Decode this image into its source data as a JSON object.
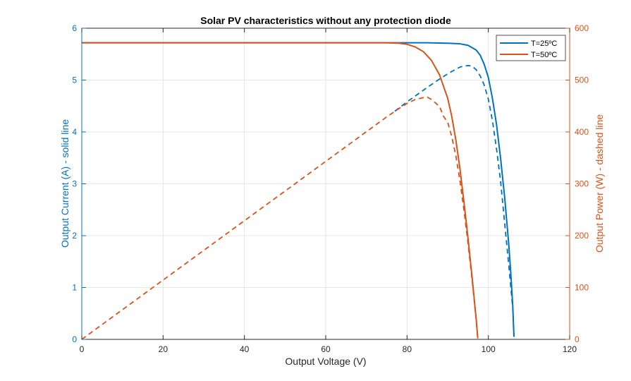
{
  "figure": {
    "background": "#ffffff"
  },
  "chart_data": {
    "type": "line",
    "title": "Solar PV characteristics without any protection diode",
    "xlabel": "Output Voltage (V)",
    "ylabel_left": "Output Current (A) - solid line",
    "ylabel_right": "Output Power (W) - dashed line",
    "xlim": [
      0,
      120
    ],
    "ylim_left": [
      0,
      6
    ],
    "ylim_right": [
      0,
      600
    ],
    "x_ticks": [
      "0",
      "20",
      "40",
      "60",
      "80",
      "100",
      "120"
    ],
    "y_left_ticks": [
      "0",
      "1",
      "2",
      "3",
      "4",
      "5",
      "6"
    ],
    "y_right_ticks": [
      "0",
      "100",
      "200",
      "300",
      "400",
      "500",
      "600"
    ],
    "grid": true,
    "legend_position": "top-right",
    "colors": {
      "series_25": "#0072BD",
      "series_50": "#D95319",
      "axis": "#262626",
      "grid": "#dfdfdf"
    },
    "series": [
      {
        "name": "T=25ºC",
        "color": "#0072BD",
        "current": {
          "style": "solid",
          "x": [
            0,
            20,
            40,
            60,
            75,
            85,
            90,
            93,
            95,
            97,
            98,
            99,
            100,
            101,
            102,
            103,
            104,
            105,
            105.5,
            106,
            106.3
          ],
          "y": [
            5.72,
            5.72,
            5.72,
            5.72,
            5.72,
            5.72,
            5.71,
            5.7,
            5.67,
            5.58,
            5.48,
            5.3,
            5.05,
            4.65,
            4.15,
            3.5,
            2.75,
            1.85,
            1.3,
            0.65,
            0.05
          ]
        },
        "power": {
          "style": "dashed",
          "x": [
            77,
            80,
            85,
            88,
            90,
            92,
            93,
            94,
            95,
            96,
            97,
            98,
            99,
            100,
            101,
            102,
            103,
            104,
            105,
            106,
            106.3
          ],
          "y": [
            440,
            458,
            486,
            502,
            512,
            521,
            525,
            527,
            528,
            527,
            520,
            508,
            490,
            463,
            422,
            368,
            306,
            225,
            145,
            60,
            5
          ]
        }
      },
      {
        "name": "T=50ºC",
        "color": "#D95319",
        "current": {
          "style": "solid",
          "x": [
            0,
            20,
            40,
            60,
            75,
            78,
            80,
            82,
            84,
            86,
            88,
            90,
            91,
            92,
            93,
            94,
            95,
            96,
            97,
            97.4
          ],
          "y": [
            5.72,
            5.72,
            5.72,
            5.72,
            5.72,
            5.71,
            5.69,
            5.64,
            5.55,
            5.38,
            5.1,
            4.65,
            4.3,
            3.85,
            3.3,
            2.65,
            1.95,
            1.2,
            0.4,
            0.02
          ]
        },
        "power": {
          "style": "dashed",
          "x": [
            0,
            20,
            40,
            60,
            75,
            78,
            80,
            82,
            84,
            85,
            86,
            87,
            88,
            89,
            90,
            91,
            92,
            93,
            94,
            95,
            96,
            97,
            97.4
          ],
          "y": [
            0,
            114.4,
            228.8,
            343.2,
            429,
            445,
            455,
            462.5,
            466.2,
            467,
            462.7,
            456,
            448.8,
            430,
            418.5,
            391.3,
            354.2,
            306.9,
            249.1,
            185.3,
            115.2,
            38.8,
            2
          ]
        }
      }
    ]
  }
}
